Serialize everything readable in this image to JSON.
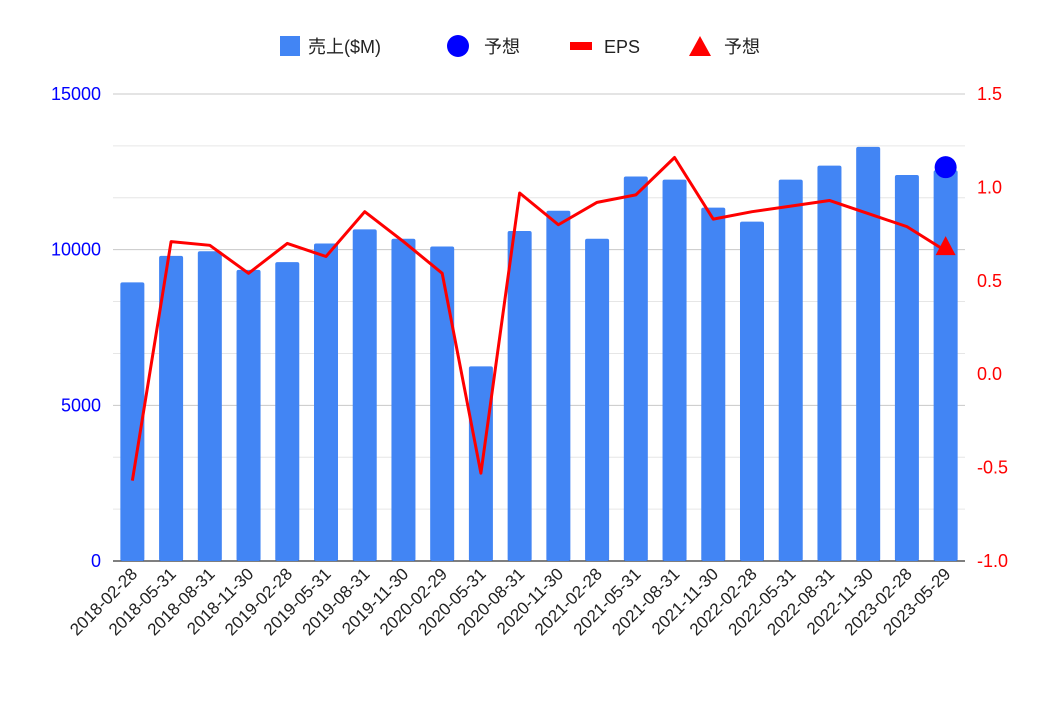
{
  "chart_data": {
    "type": "bar",
    "categories": [
      "2018-02-28",
      "2018-05-31",
      "2018-08-31",
      "2018-11-30",
      "2019-02-28",
      "2019-05-31",
      "2019-08-31",
      "2019-11-30",
      "2020-02-29",
      "2020-05-31",
      "2020-08-31",
      "2020-11-30",
      "2021-02-28",
      "2021-05-31",
      "2021-08-31",
      "2021-11-30",
      "2022-02-28",
      "2022-05-31",
      "2022-08-31",
      "2022-11-30",
      "2023-02-28",
      "2023-05-29"
    ],
    "series": [
      {
        "name": "売上($M)",
        "kind": "bar",
        "axis": "left",
        "color": "#4285f4",
        "values": [
          8950,
          9800,
          9950,
          9350,
          9600,
          10200,
          10650,
          10350,
          10100,
          6250,
          10600,
          11250,
          10350,
          12350,
          12250,
          11350,
          10900,
          12250,
          12700,
          13300,
          12400,
          12550
        ]
      },
      {
        "name": "予想",
        "kind": "circle",
        "axis": "left",
        "color": "#0000ff",
        "points": [
          {
            "category": "2023-05-29",
            "value": 12650
          }
        ]
      },
      {
        "name": "EPS",
        "kind": "line",
        "axis": "right",
        "color": "#ff0000",
        "values": [
          -0.57,
          0.71,
          0.69,
          0.54,
          0.7,
          0.63,
          0.87,
          0.71,
          0.54,
          -0.53,
          0.97,
          0.8,
          0.92,
          0.96,
          1.16,
          0.83,
          0.87,
          0.9,
          0.93,
          0.86,
          0.79,
          0.66
        ]
      },
      {
        "name": "予想",
        "kind": "triangle",
        "axis": "right",
        "color": "#ff0000",
        "points": [
          {
            "category": "2023-05-29",
            "value": 0.68
          }
        ]
      }
    ],
    "y_left": {
      "min": 0,
      "max": 15000,
      "ticks": [
        "0",
        "5000",
        "10000",
        "15000"
      ],
      "color": "#0000ff"
    },
    "y_right": {
      "min": -1.0,
      "max": 1.5,
      "ticks": [
        "-1.0",
        "-0.5",
        "0.0",
        "0.5",
        "1.0",
        "1.5"
      ],
      "color": "#ff0000"
    },
    "legend": {
      "position": "top",
      "entries": [
        "売上($M)",
        "予想",
        "EPS",
        "予想"
      ]
    },
    "grid": true,
    "title": "",
    "xlabel": "",
    "ylabel": ""
  }
}
